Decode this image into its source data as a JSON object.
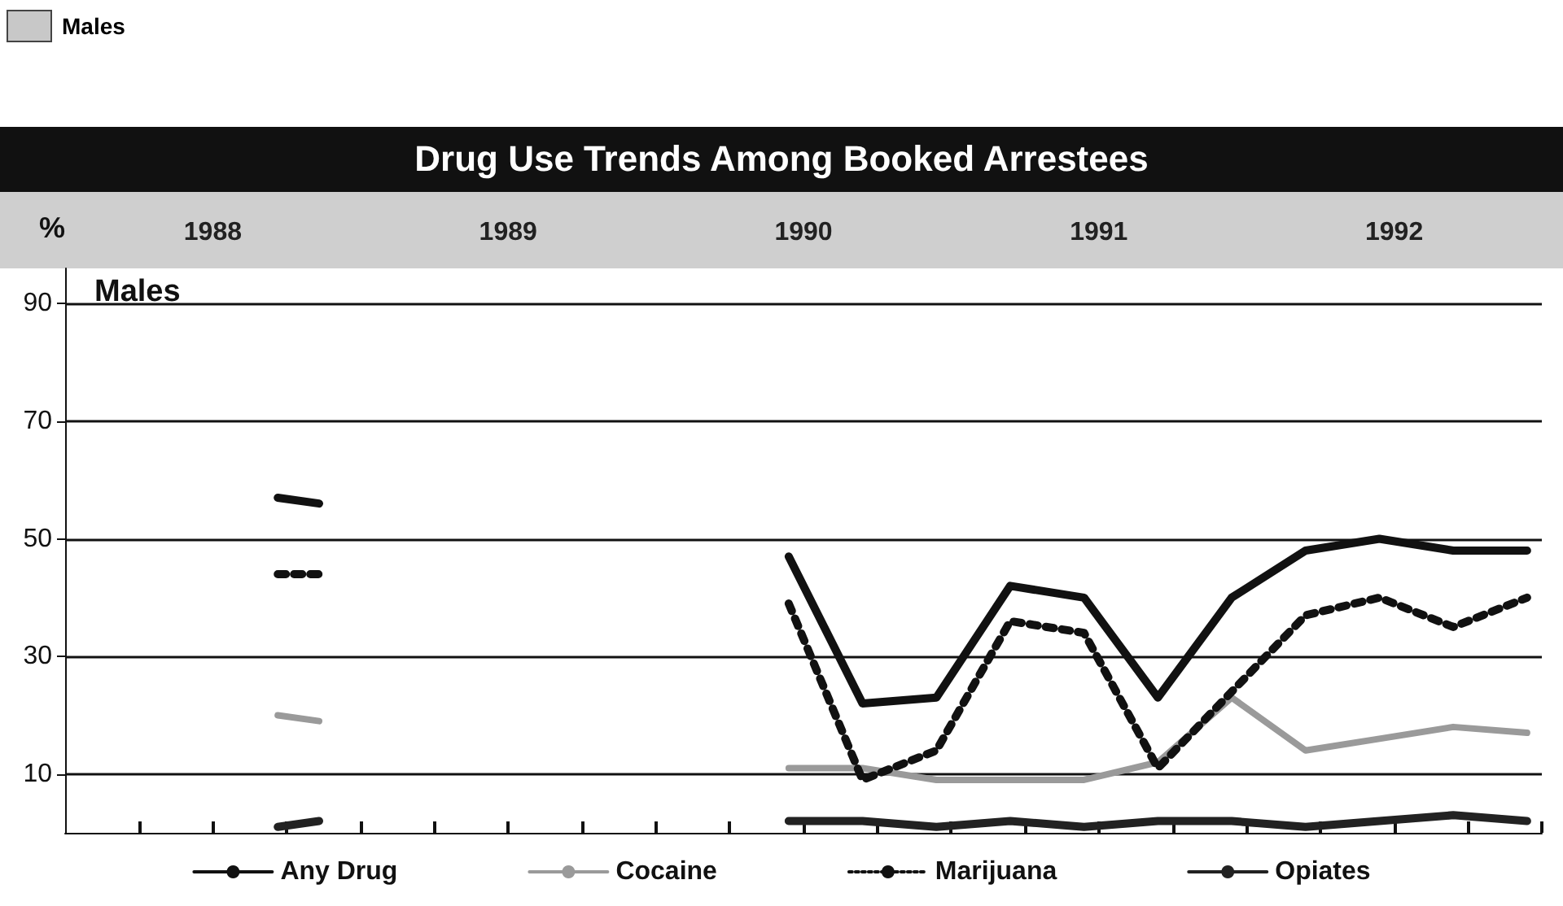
{
  "chart_data": {
    "type": "line",
    "title": "Drug Use Trends Among Booked Arrestees",
    "subtitle": "Males",
    "ylabel": "%",
    "annotations": [
      "Males"
    ],
    "x": [
      1988.72,
      1988.86,
      1989.6,
      1990.45,
      1990.7,
      1990.95,
      1991.2,
      1991.45,
      1991.7,
      1991.95,
      1992.2,
      1992.45,
      1992.7,
      1992.95
    ],
    "series": [
      {
        "name": "Any Drug",
        "color": "#111111",
        "line_style": "solid",
        "values": [
          57,
          56,
          null,
          47,
          22,
          23,
          42,
          40,
          23,
          40,
          48,
          50,
          48,
          48
        ]
      },
      {
        "name": "Cocaine",
        "color": "#9a9a9a",
        "line_style": "solid",
        "values": [
          20,
          19,
          null,
          11,
          11,
          9,
          9,
          9,
          12,
          23,
          14,
          16,
          18,
          17
        ]
      },
      {
        "name": "Marijuana",
        "color": "#111111",
        "line_style": "dotted",
        "values": [
          44,
          44,
          null,
          39,
          9,
          14,
          36,
          34,
          11,
          24,
          37,
          40,
          35,
          40
        ]
      },
      {
        "name": "Opiates",
        "color": "#222222",
        "line_style": "solid",
        "values": [
          1,
          2,
          null,
          2,
          2,
          1,
          2,
          1,
          2,
          2,
          1,
          2,
          3,
          2
        ]
      }
    ],
    "xlim": [
      1988,
      1993
    ],
    "xticks": [
      {
        "value": 1988.25,
        "label": null
      },
      {
        "value": 1988.5,
        "label": "1988"
      },
      {
        "value": 1988.75,
        "label": null
      },
      {
        "value": 1989,
        "label": null
      },
      {
        "value": 1989.25,
        "label": null
      },
      {
        "value": 1989.5,
        "label": "1989"
      },
      {
        "value": 1989.75,
        "label": null
      },
      {
        "value": 1990,
        "label": null
      },
      {
        "value": 1990.25,
        "label": null
      },
      {
        "value": 1990.5,
        "label": "1990"
      },
      {
        "value": 1990.75,
        "label": null
      },
      {
        "value": 1991,
        "label": null
      },
      {
        "value": 1991.25,
        "label": null
      },
      {
        "value": 1991.5,
        "label": "1991"
      },
      {
        "value": 1991.75,
        "label": null
      },
      {
        "value": 1992,
        "label": null
      },
      {
        "value": 1992.25,
        "label": null
      },
      {
        "value": 1992.5,
        "label": "1992"
      },
      {
        "value": 1992.75,
        "label": null
      },
      {
        "value": 1993,
        "label": null
      }
    ],
    "ylim": [
      0,
      96
    ],
    "yticks": [
      10,
      30,
      50,
      70,
      90
    ],
    "grid": "y",
    "legend": "bottom",
    "marker": "none"
  }
}
